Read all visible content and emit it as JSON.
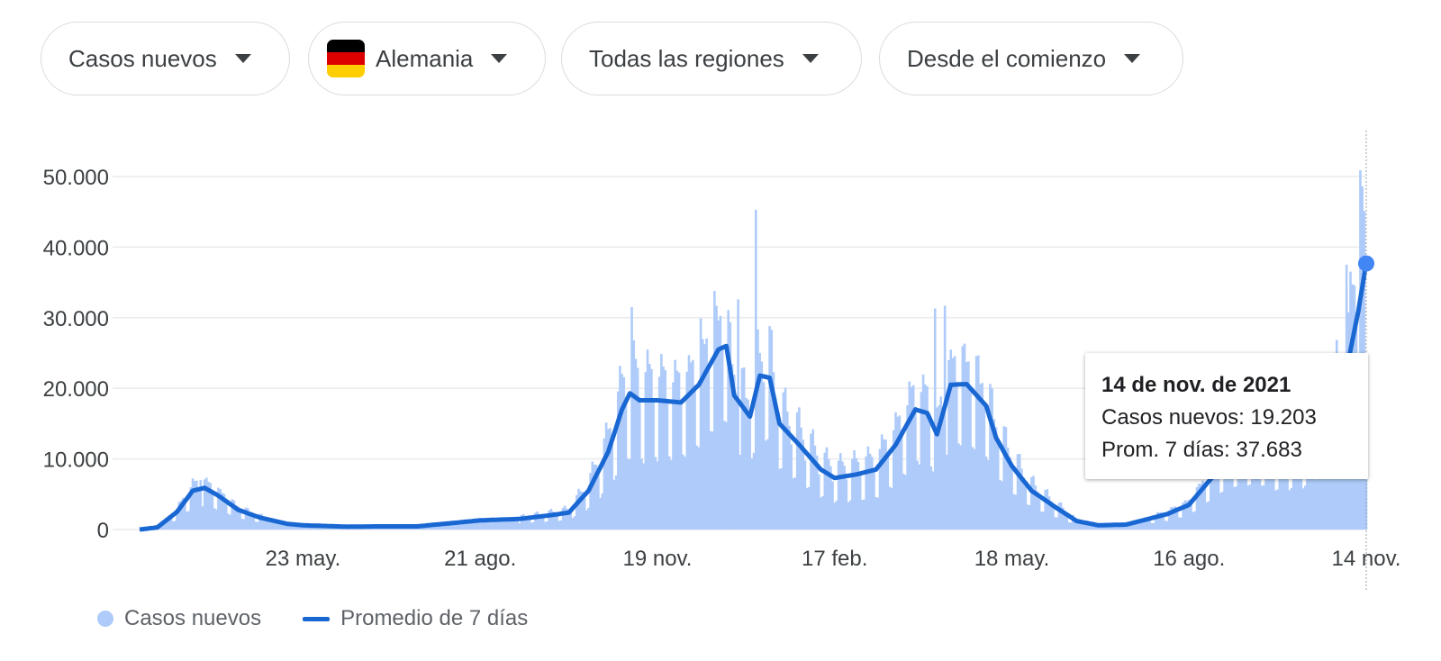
{
  "filters": {
    "metric": "Casos nuevos",
    "country": "Alemania",
    "region": "Todas las regiones",
    "period": "Desde el comienzo"
  },
  "colors": {
    "bars": "#aecbfa",
    "line": "#1967d2",
    "marker": "#4285f4",
    "grid": "#e8eaed",
    "flag": [
      "#000000",
      "#dd0000",
      "#ffce00"
    ]
  },
  "icons": {
    "dropdown": "caret-down-icon",
    "flag": "germany-flag-icon"
  },
  "chart_data": {
    "type": "bar",
    "y_ticks": [
      "0",
      "10.000",
      "20.000",
      "30.000",
      "40.000",
      "50.000"
    ],
    "ylim": [
      0,
      50000
    ],
    "grid": true,
    "x_range": [
      "2020-03-01",
      "2021-11-14"
    ],
    "x_ticks": [
      {
        "date": "2020-05-23",
        "label": "23 may."
      },
      {
        "date": "2020-08-21",
        "label": "21 ago."
      },
      {
        "date": "2020-11-19",
        "label": "19 nov."
      },
      {
        "date": "2021-02-17",
        "label": "17 feb."
      },
      {
        "date": "2021-05-18",
        "label": "18 may."
      },
      {
        "date": "2021-08-16",
        "label": "16 ago."
      },
      {
        "date": "2021-11-14",
        "label": "14 nov."
      }
    ],
    "series": [
      {
        "name": "Promedio de 7 días",
        "kind": "line",
        "points": [
          [
            "2020-03-01",
            0
          ],
          [
            "2020-03-10",
            300
          ],
          [
            "2020-03-20",
            2500
          ],
          [
            "2020-03-28",
            5500
          ],
          [
            "2020-04-03",
            5900
          ],
          [
            "2020-04-10",
            4800
          ],
          [
            "2020-04-20",
            2800
          ],
          [
            "2020-05-01",
            1700
          ],
          [
            "2020-05-15",
            800
          ],
          [
            "2020-05-23",
            600
          ],
          [
            "2020-06-15",
            400
          ],
          [
            "2020-07-01",
            450
          ],
          [
            "2020-07-20",
            450
          ],
          [
            "2020-08-10",
            1000
          ],
          [
            "2020-08-21",
            1300
          ],
          [
            "2020-09-10",
            1500
          ],
          [
            "2020-09-25",
            2000
          ],
          [
            "2020-10-05",
            2400
          ],
          [
            "2020-10-15",
            5500
          ],
          [
            "2020-10-25",
            11000
          ],
          [
            "2020-11-01",
            17000
          ],
          [
            "2020-11-05",
            19300
          ],
          [
            "2020-11-10",
            18300
          ],
          [
            "2020-11-19",
            18300
          ],
          [
            "2020-12-01",
            18000
          ],
          [
            "2020-12-10",
            20500
          ],
          [
            "2020-12-20",
            25500
          ],
          [
            "2020-12-24",
            26000
          ],
          [
            "2020-12-28",
            19000
          ],
          [
            "2021-01-05",
            16000
          ],
          [
            "2021-01-10",
            21800
          ],
          [
            "2021-01-15",
            21500
          ],
          [
            "2021-01-20",
            15000
          ],
          [
            "2021-01-30",
            12000
          ],
          [
            "2021-02-10",
            8500
          ],
          [
            "2021-02-17",
            7300
          ],
          [
            "2021-02-28",
            7800
          ],
          [
            "2021-03-10",
            8500
          ],
          [
            "2021-03-20",
            12000
          ],
          [
            "2021-03-30",
            17000
          ],
          [
            "2021-04-05",
            16500
          ],
          [
            "2021-04-10",
            13500
          ],
          [
            "2021-04-17",
            20500
          ],
          [
            "2021-04-25",
            20600
          ],
          [
            "2021-05-05",
            17500
          ],
          [
            "2021-05-10",
            13000
          ],
          [
            "2021-05-18",
            9000
          ],
          [
            "2021-05-28",
            5500
          ],
          [
            "2021-06-10",
            3000
          ],
          [
            "2021-06-20",
            1200
          ],
          [
            "2021-07-01",
            600
          ],
          [
            "2021-07-15",
            700
          ],
          [
            "2021-07-25",
            1400
          ],
          [
            "2021-08-05",
            2200
          ],
          [
            "2021-08-16",
            3500
          ],
          [
            "2021-08-25",
            6500
          ],
          [
            "2021-09-05",
            10000
          ],
          [
            "2021-09-20",
            11000
          ],
          [
            "2021-10-01",
            9500
          ],
          [
            "2021-10-15",
            11000
          ],
          [
            "2021-10-25",
            16000
          ],
          [
            "2021-11-01",
            19500
          ],
          [
            "2021-11-05",
            24000
          ],
          [
            "2021-11-10",
            31000
          ],
          [
            "2021-11-14",
            37683
          ]
        ]
      },
      {
        "name": "Casos nuevos",
        "kind": "bar",
        "daily": "light blue daily bars following the 7-day average, weekday peaks up to ~45.000 (Dec 2020) and ~51.000 (Nov 2021)",
        "peaks": [
          [
            "2020-04-01",
            7000
          ],
          [
            "2020-11-06",
            31500
          ],
          [
            "2020-12-11",
            29900
          ],
          [
            "2020-12-18",
            33800
          ],
          [
            "2020-12-30",
            32600
          ],
          [
            "2021-01-08",
            45300
          ],
          [
            "2021-04-09",
            31300
          ],
          [
            "2021-04-14",
            31700
          ],
          [
            "2021-11-04",
            37500
          ],
          [
            "2021-11-11",
            50900
          ],
          [
            "2021-11-12",
            48600
          ],
          [
            "2021-11-13",
            45100
          ],
          [
            "2021-11-14",
            19203
          ]
        ]
      }
    ],
    "highlight": {
      "date": "2021-11-14",
      "value": 37683
    }
  },
  "tooltip": {
    "title": "14 de nov. de 2021",
    "line1": "Casos nuevos: 19.203",
    "line2": "Prom. 7 días: 37.683"
  },
  "legend": [
    {
      "label": "Casos nuevos"
    },
    {
      "label": "Promedio de 7 días"
    }
  ]
}
